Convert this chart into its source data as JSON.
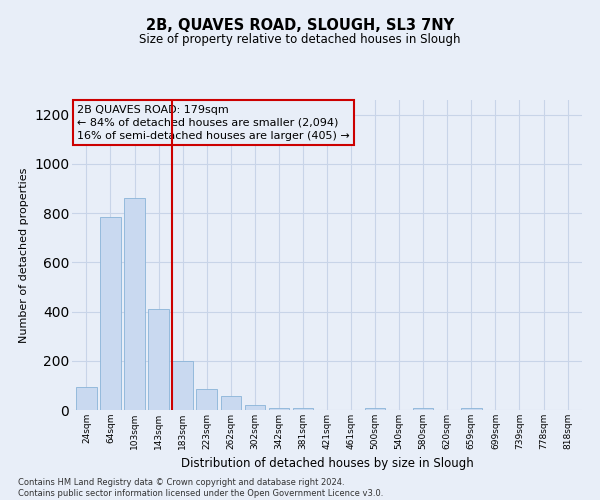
{
  "title": "2B, QUAVES ROAD, SLOUGH, SL3 7NY",
  "subtitle": "Size of property relative to detached houses in Slough",
  "xlabel": "Distribution of detached houses by size in Slough",
  "ylabel": "Number of detached properties",
  "categories": [
    "24sqm",
    "64sqm",
    "103sqm",
    "143sqm",
    "183sqm",
    "223sqm",
    "262sqm",
    "302sqm",
    "342sqm",
    "381sqm",
    "421sqm",
    "461sqm",
    "500sqm",
    "540sqm",
    "580sqm",
    "620sqm",
    "659sqm",
    "699sqm",
    "739sqm",
    "778sqm",
    "818sqm"
  ],
  "values": [
    95,
    785,
    862,
    410,
    200,
    85,
    55,
    20,
    10,
    10,
    0,
    0,
    10,
    0,
    10,
    0,
    10,
    0,
    0,
    0,
    0
  ],
  "bar_color": "#c9d9f0",
  "bar_edge_color": "#8ab4d8",
  "vline_x_index": 4,
  "vline_color": "#cc0000",
  "ann_line1": "2B QUAVES ROAD: 179sqm",
  "ann_line2": "← 84% of detached houses are smaller (2,094)",
  "ann_line3": "16% of semi-detached houses are larger (405) →",
  "ylim": [
    0,
    1260
  ],
  "yticks": [
    0,
    200,
    400,
    600,
    800,
    1000,
    1200
  ],
  "grid_color": "#c8d4e8",
  "bg_color": "#e8eef8",
  "footer_line1": "Contains HM Land Registry data © Crown copyright and database right 2024.",
  "footer_line2": "Contains public sector information licensed under the Open Government Licence v3.0."
}
